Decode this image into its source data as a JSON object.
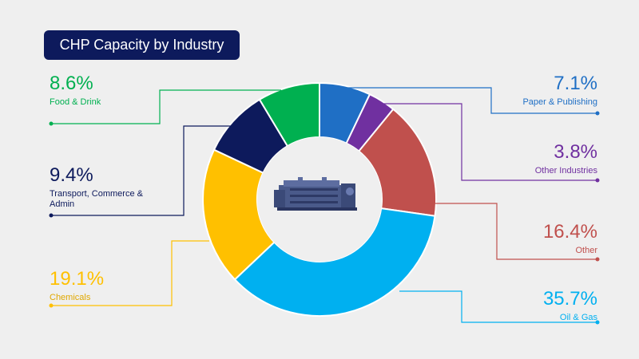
{
  "title": "CHP Capacity by Industry",
  "center_icon": "engine-generator-icon",
  "chart_data": {
    "type": "pie",
    "style": "donut",
    "title": "CHP Capacity by Industry",
    "slices": [
      {
        "label": "Paper & Publishing",
        "value": 7.1,
        "display": "7.1%",
        "color": "#1f6fc5"
      },
      {
        "label": "Other Industries",
        "value": 3.8,
        "display": "3.8%",
        "color": "#7030a0"
      },
      {
        "label": "Other",
        "value": 16.4,
        "display": "16.4%",
        "color": "#c0504d"
      },
      {
        "label": "Oil & Gas",
        "value": 35.7,
        "display": "35.7%",
        "color": "#00b0f0"
      },
      {
        "label": "Chemicals",
        "value": 19.1,
        "display": "19.1%",
        "color": "#ffc000"
      },
      {
        "label": "Transport, Commerce & Admin",
        "value": 9.4,
        "display": "9.4%",
        "color": "#0d1a5c"
      },
      {
        "label": "Food & Drink",
        "value": 8.6,
        "display": "8.6%",
        "color": "#00b050"
      }
    ]
  }
}
